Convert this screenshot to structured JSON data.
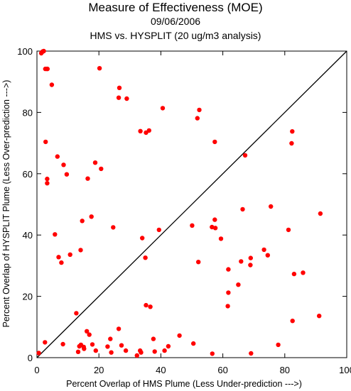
{
  "title": "Measure of Effectiveness (MOE)",
  "date": "09/06/2006",
  "subtitle": "HMS vs. HYSPLIT  (20 ug/m3 analysis)",
  "colors": {
    "points": "#ff0000",
    "axes": "#000000",
    "diagonal": "#000000"
  },
  "chart_data": {
    "type": "scatter",
    "title": "Measure of Effectiveness (MOE)",
    "subtitle": "HMS vs. HYSPLIT  (20 ug/m3 analysis)",
    "xlabel": "Percent Overlap of HMS Plume (Less Under-prediction --->)",
    "ylabel": "Percent Overlap of HYSPLIT Plume (Less Over-prediction --->)",
    "xlim": [
      0,
      100
    ],
    "ylim": [
      0,
      100
    ],
    "xticks": [
      "0",
      "20",
      "40",
      "60",
      "80",
      "100"
    ],
    "yticks": [
      "0",
      "20",
      "40",
      "60",
      "80",
      "100"
    ],
    "grid": false,
    "reference_line": "y = x",
    "points": [
      [
        1.4,
        99.3
      ],
      [
        1.6,
        99.6
      ],
      [
        1.9,
        99.9
      ],
      [
        2.2,
        100.0
      ],
      [
        2.7,
        94.2
      ],
      [
        3.2,
        94.2
      ],
      [
        3.4,
        94.2
      ],
      [
        4.8,
        89.0
      ],
      [
        20.2,
        94.4
      ],
      [
        26.6,
        88.0
      ],
      [
        26.4,
        84.8
      ],
      [
        29.0,
        84.5
      ],
      [
        40.6,
        81.4
      ],
      [
        52.4,
        80.8
      ],
      [
        51.8,
        78.1
      ],
      [
        57.4,
        70.4
      ],
      [
        33.4,
        73.9
      ],
      [
        35.2,
        73.4
      ],
      [
        36.2,
        74.1
      ],
      [
        82.4,
        73.8
      ],
      [
        82.2,
        69.9
      ],
      [
        67.2,
        66.0
      ],
      [
        2.8,
        70.4
      ],
      [
        6.6,
        65.6
      ],
      [
        8.6,
        62.9
      ],
      [
        3.3,
        58.3
      ],
      [
        3.3,
        56.9
      ],
      [
        9.6,
        59.8
      ],
      [
        18.8,
        63.6
      ],
      [
        20.7,
        61.6
      ],
      [
        16.4,
        58.4
      ],
      [
        17.6,
        46.0
      ],
      [
        14.6,
        44.6
      ],
      [
        24.6,
        42.5
      ],
      [
        5.8,
        40.2
      ],
      [
        34.0,
        39.0
      ],
      [
        39.4,
        41.7
      ],
      [
        50.1,
        43.1
      ],
      [
        56.5,
        42.6
      ],
      [
        57.4,
        45.0
      ],
      [
        57.6,
        42.3
      ],
      [
        66.4,
        48.4
      ],
      [
        75.5,
        49.3
      ],
      [
        59.4,
        38.8
      ],
      [
        81.2,
        41.7
      ],
      [
        91.5,
        47.0
      ],
      [
        7.0,
        32.8
      ],
      [
        7.9,
        31.0
      ],
      [
        10.7,
        33.6
      ],
      [
        14.1,
        35.1
      ],
      [
        35.0,
        32.6
      ],
      [
        52.1,
        31.2
      ],
      [
        65.9,
        31.4
      ],
      [
        68.9,
        30.2
      ],
      [
        69.0,
        32.5
      ],
      [
        73.3,
        35.2
      ],
      [
        74.5,
        33.4
      ],
      [
        61.8,
        28.8
      ],
      [
        83.0,
        27.3
      ],
      [
        85.9,
        27.7
      ],
      [
        65.0,
        23.8
      ],
      [
        61.8,
        21.2
      ],
      [
        61.6,
        16.8
      ],
      [
        35.2,
        17.1
      ],
      [
        36.6,
        16.6
      ],
      [
        12.7,
        14.5
      ],
      [
        82.5,
        12.0
      ],
      [
        91.1,
        13.6
      ],
      [
        26.4,
        9.4
      ],
      [
        16.1,
        8.6
      ],
      [
        16.9,
        7.5
      ],
      [
        23.7,
        6.1
      ],
      [
        37.6,
        6.1
      ],
      [
        46.0,
        7.2
      ],
      [
        27.3,
        4.0
      ],
      [
        2.6,
        5.0
      ],
      [
        8.4,
        4.4
      ],
      [
        14.2,
        4.2
      ],
      [
        13.7,
        3.7
      ],
      [
        15.1,
        3.5
      ],
      [
        17.9,
        4.3
      ],
      [
        42.4,
        3.7
      ],
      [
        50.5,
        4.6
      ],
      [
        77.9,
        4.2
      ],
      [
        13.3,
        1.9
      ],
      [
        15.2,
        2.9
      ],
      [
        19.0,
        2.3
      ],
      [
        22.8,
        3.6
      ],
      [
        24.0,
        1.7
      ],
      [
        28.7,
        2.3
      ],
      [
        33.3,
        2.3
      ],
      [
        33.6,
        1.7
      ],
      [
        38.0,
        2.0
      ],
      [
        41.2,
        2.3
      ],
      [
        32.3,
        0.7
      ],
      [
        56.6,
        1.3
      ],
      [
        69.1,
        1.4
      ],
      [
        0.6,
        1.5
      ]
    ]
  }
}
